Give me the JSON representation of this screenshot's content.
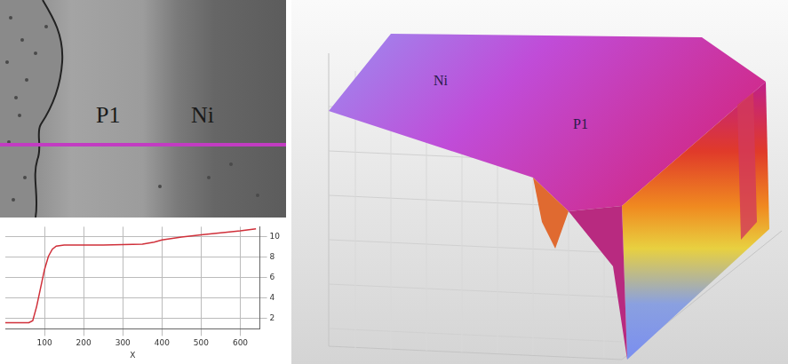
{
  "micrograph": {
    "labels": [
      "P1",
      "Ni"
    ]
  },
  "chart_data": {
    "type": "line",
    "x_label": "X",
    "color": "#d0303a",
    "x": [
      0,
      40,
      60,
      70,
      80,
      90,
      100,
      110,
      120,
      130,
      150,
      200,
      250,
      300,
      350,
      380,
      400,
      450,
      500,
      550,
      600,
      640
    ],
    "values": [
      1.6,
      1.6,
      1.6,
      1.8,
      3.2,
      5.0,
      6.8,
      8.1,
      8.8,
      9.1,
      9.2,
      9.2,
      9.2,
      9.25,
      9.3,
      9.5,
      9.7,
      10.0,
      10.2,
      10.4,
      10.6,
      10.8
    ],
    "xlim": [
      0,
      650
    ],
    "xticks": [
      100,
      200,
      300,
      400,
      500,
      600
    ],
    "ylim": [
      1,
      11
    ],
    "yticks": [
      2,
      4,
      6,
      8,
      10
    ],
    "grid": true
  },
  "surface_3d": {
    "labels": [
      "Ni",
      "P1"
    ]
  }
}
